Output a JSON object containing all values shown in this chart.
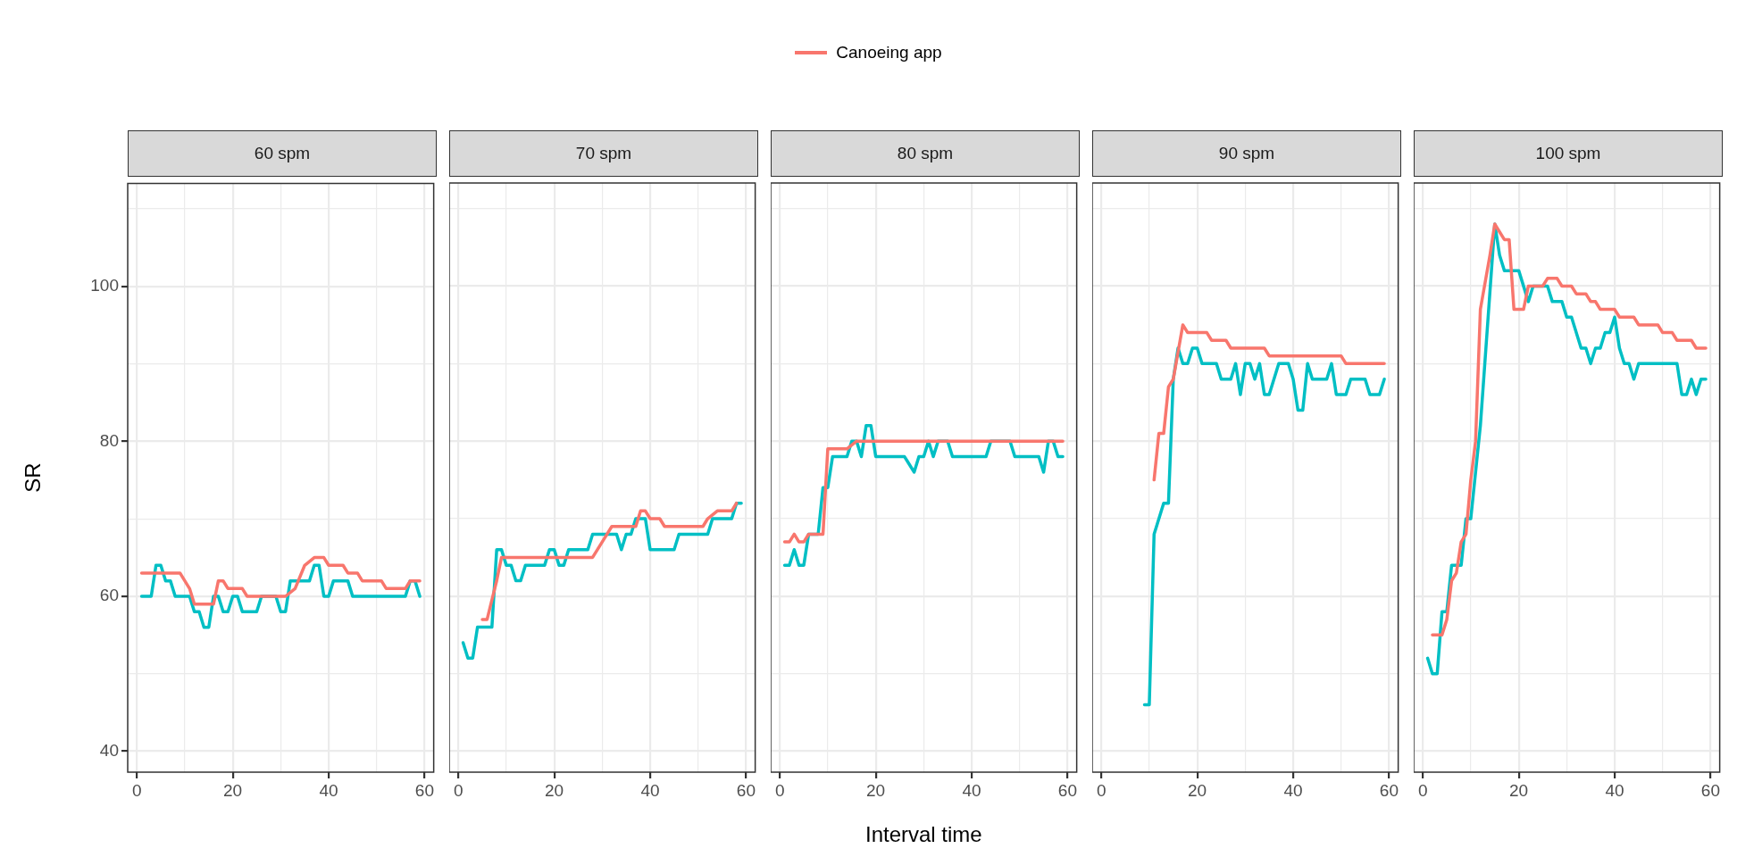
{
  "chart_data": [
    {
      "type": "line",
      "title": "60 spm",
      "ylabel": "SR",
      "legend": "top",
      "grid": true,
      "xlim": [
        -1.9,
        61.9
      ],
      "ylim": [
        37.3,
        113.3
      ],
      "xticks": [
        0,
        {
          "value": 10,
          "label": null
        },
        20,
        {
          "value": 30,
          "label": null
        },
        40,
        {
          "value": 50,
          "label": null
        },
        60
      ],
      "yticks": [
        40,
        {
          "value": 50,
          "label": null
        },
        60,
        {
          "value": 70,
          "label": null
        },
        80,
        {
          "value": 90,
          "label": null
        },
        100,
        {
          "value": 110,
          "label": null
        }
      ],
      "series": [
        {
          "name": "Canoeing app",
          "color": "#f8766d",
          "x": [
            1,
            9,
            11,
            12,
            16,
            17,
            18,
            19,
            22,
            23,
            31,
            33,
            35,
            37,
            39,
            40,
            43,
            44,
            46,
            47,
            51,
            52,
            56,
            57,
            59
          ],
          "values": [
            63,
            63,
            61,
            59,
            59,
            62,
            62,
            61,
            61,
            60,
            60,
            61,
            64,
            65,
            65,
            64,
            64,
            63,
            63,
            62,
            62,
            61,
            61,
            62,
            62
          ]
        },
        {
          "color": "#00bfc4",
          "x": [
            1,
            3,
            4,
            5,
            6,
            7,
            8,
            11,
            12,
            13,
            14,
            15,
            16,
            17,
            18,
            19,
            20,
            21,
            22,
            25,
            26,
            29,
            30,
            31,
            32,
            36,
            37,
            38,
            39,
            40,
            41,
            44,
            45,
            56,
            57,
            58,
            59
          ],
          "values": [
            60,
            60,
            64,
            64,
            62,
            62,
            60,
            60,
            58,
            58,
            56,
            56,
            60,
            60,
            58,
            58,
            60,
            60,
            58,
            58,
            60,
            60,
            58,
            58,
            62,
            62,
            64,
            64,
            60,
            60,
            62,
            62,
            60,
            60,
            62,
            62,
            60
          ]
        }
      ]
    },
    {
      "type": "line",
      "title": "70 spm",
      "grid": true,
      "tick_labels": "x",
      "xlim": [
        -1.9,
        61.9
      ],
      "ylim": [
        37.3,
        113.3
      ],
      "xticks": [
        0,
        {
          "value": 10,
          "label": null
        },
        20,
        {
          "value": 30,
          "label": null
        },
        40,
        {
          "value": 50,
          "label": null
        },
        60
      ],
      "yticks": [
        40,
        {
          "value": 50,
          "label": null
        },
        60,
        {
          "value": 70,
          "label": null
        },
        80,
        {
          "value": 90,
          "label": null
        },
        100,
        {
          "value": 110,
          "label": null
        }
      ],
      "series": [
        {
          "color": "#f8766d",
          "x": [
            5,
            6,
            8,
            9,
            28,
            30,
            32,
            37,
            38,
            39,
            40,
            42,
            43,
            51,
            52,
            54,
            57,
            58
          ],
          "values": [
            57,
            57,
            62,
            65,
            65,
            67,
            69,
            69,
            71,
            71,
            70,
            70,
            69,
            69,
            70,
            71,
            71,
            72
          ]
        },
        {
          "color": "#00bfc4",
          "x": [
            1,
            2,
            3,
            4,
            7,
            8,
            9,
            10,
            11,
            12,
            13,
            14,
            18,
            19,
            20,
            21,
            22,
            23,
            27,
            28,
            33,
            34,
            35,
            36,
            37,
            39,
            40,
            45,
            46,
            52,
            53,
            57,
            58,
            59
          ],
          "values": [
            54,
            52,
            52,
            56,
            56,
            66,
            66,
            64,
            64,
            62,
            62,
            64,
            64,
            66,
            66,
            64,
            64,
            66,
            66,
            68,
            68,
            66,
            68,
            68,
            70,
            70,
            66,
            66,
            68,
            68,
            70,
            70,
            72,
            72
          ]
        }
      ]
    },
    {
      "type": "line",
      "title": "80 spm",
      "xlabel": "Interval time",
      "grid": true,
      "tick_labels": "x",
      "xlim": [
        -1.9,
        61.9
      ],
      "ylim": [
        37.3,
        113.3
      ],
      "xticks": [
        0,
        {
          "value": 10,
          "label": null
        },
        20,
        {
          "value": 30,
          "label": null
        },
        40,
        {
          "value": 50,
          "label": null
        },
        60
      ],
      "yticks": [
        40,
        {
          "value": 50,
          "label": null
        },
        60,
        {
          "value": 70,
          "label": null
        },
        80,
        {
          "value": 90,
          "label": null
        },
        100,
        {
          "value": 110,
          "label": null
        }
      ],
      "series": [
        {
          "color": "#f8766d",
          "x": [
            1,
            2,
            3,
            4,
            5,
            6,
            9,
            10,
            14,
            16,
            59
          ],
          "values": [
            67,
            67,
            68,
            67,
            67,
            68,
            68,
            79,
            79,
            80,
            80
          ]
        },
        {
          "color": "#00bfc4",
          "x": [
            1,
            2,
            3,
            4,
            5,
            6,
            8,
            9,
            10,
            11,
            14,
            15,
            16,
            17,
            18,
            19,
            20,
            26,
            28,
            29,
            30,
            31,
            32,
            33,
            35,
            36,
            43,
            44,
            48,
            49,
            54,
            55,
            56,
            57,
            58,
            59
          ],
          "values": [
            64,
            64,
            66,
            64,
            64,
            68,
            68,
            74,
            74,
            78,
            78,
            80,
            80,
            78,
            82,
            82,
            78,
            78,
            76,
            78,
            78,
            80,
            78,
            80,
            80,
            78,
            78,
            80,
            80,
            78,
            78,
            76,
            80,
            80,
            78,
            78
          ]
        }
      ]
    },
    {
      "type": "line",
      "title": "90 spm",
      "grid": true,
      "tick_labels": "x",
      "xlim": [
        -1.9,
        61.9
      ],
      "ylim": [
        37.3,
        113.3
      ],
      "xticks": [
        0,
        {
          "value": 10,
          "label": null
        },
        20,
        {
          "value": 30,
          "label": null
        },
        40,
        {
          "value": 50,
          "label": null
        },
        60
      ],
      "yticks": [
        40,
        {
          "value": 50,
          "label": null
        },
        60,
        {
          "value": 70,
          "label": null
        },
        80,
        {
          "value": 90,
          "label": null
        },
        100,
        {
          "value": 110,
          "label": null
        }
      ],
      "series": [
        {
          "color": "#f8766d",
          "x": [
            11,
            12,
            13,
            14,
            15,
            17,
            18,
            22,
            23,
            26,
            27,
            34,
            35,
            50,
            51,
            59
          ],
          "values": [
            75,
            81,
            81,
            87,
            88,
            95,
            94,
            94,
            93,
            93,
            92,
            92,
            91,
            91,
            90,
            90
          ]
        },
        {
          "color": "#00bfc4",
          "x": [
            9,
            10,
            11,
            13,
            14,
            15,
            16,
            17,
            18,
            19,
            20,
            21,
            24,
            25,
            27,
            28,
            29,
            30,
            31,
            32,
            33,
            34,
            35,
            37,
            39,
            40,
            41,
            42,
            43,
            44,
            47,
            48,
            49,
            51,
            52,
            55,
            56,
            58,
            59
          ],
          "values": [
            46,
            46,
            68,
            72,
            72,
            88,
            92,
            90,
            90,
            92,
            92,
            90,
            90,
            88,
            88,
            90,
            86,
            90,
            90,
            88,
            90,
            86,
            86,
            90,
            90,
            88,
            84,
            84,
            90,
            88,
            88,
            90,
            86,
            86,
            88,
            88,
            86,
            86,
            88
          ]
        }
      ]
    },
    {
      "type": "line",
      "title": "100 spm",
      "grid": true,
      "tick_labels": "x",
      "xlim": [
        -1.9,
        61.9
      ],
      "ylim": [
        37.3,
        113.3
      ],
      "xticks": [
        0,
        {
          "value": 10,
          "label": null
        },
        20,
        {
          "value": 30,
          "label": null
        },
        40,
        {
          "value": 50,
          "label": null
        },
        60
      ],
      "yticks": [
        40,
        {
          "value": 50,
          "label": null
        },
        60,
        {
          "value": 70,
          "label": null
        },
        80,
        {
          "value": 90,
          "label": null
        },
        100,
        {
          "value": 110,
          "label": null
        }
      ],
      "series": [
        {
          "color": "#f8766d",
          "x": [
            2,
            4,
            5,
            6,
            7,
            8,
            9,
            10,
            11,
            12,
            14,
            15,
            16,
            17,
            18,
            19,
            21,
            22,
            25,
            26,
            28,
            29,
            31,
            32,
            34,
            35,
            36,
            37,
            40,
            41,
            44,
            45,
            49,
            50,
            52,
            53,
            56,
            57,
            59
          ],
          "values": [
            55,
            55,
            57,
            62,
            63,
            67,
            68,
            75,
            80,
            97,
            104,
            108,
            107,
            106,
            106,
            97,
            97,
            100,
            100,
            101,
            101,
            100,
            100,
            99,
            99,
            98,
            98,
            97,
            97,
            96,
            96,
            95,
            95,
            94,
            94,
            93,
            93,
            92,
            92
          ]
        },
        {
          "color": "#00bfc4",
          "x": [
            1,
            2,
            3,
            4,
            5,
            6,
            8,
            9,
            10,
            12,
            15,
            16,
            17,
            20,
            22,
            23,
            26,
            27,
            29,
            30,
            31,
            33,
            34,
            35,
            36,
            37,
            38,
            39,
            40,
            41,
            42,
            43,
            44,
            45,
            53,
            54,
            55,
            56,
            57,
            58,
            59
          ],
          "values": [
            52,
            50,
            50,
            58,
            58,
            64,
            64,
            70,
            70,
            82,
            108,
            104,
            102,
            102,
            98,
            100,
            100,
            98,
            98,
            96,
            96,
            92,
            92,
            90,
            92,
            92,
            94,
            94,
            96,
            92,
            90,
            90,
            88,
            90,
            90,
            86,
            86,
            88,
            86,
            88,
            88
          ]
        }
      ]
    }
  ]
}
